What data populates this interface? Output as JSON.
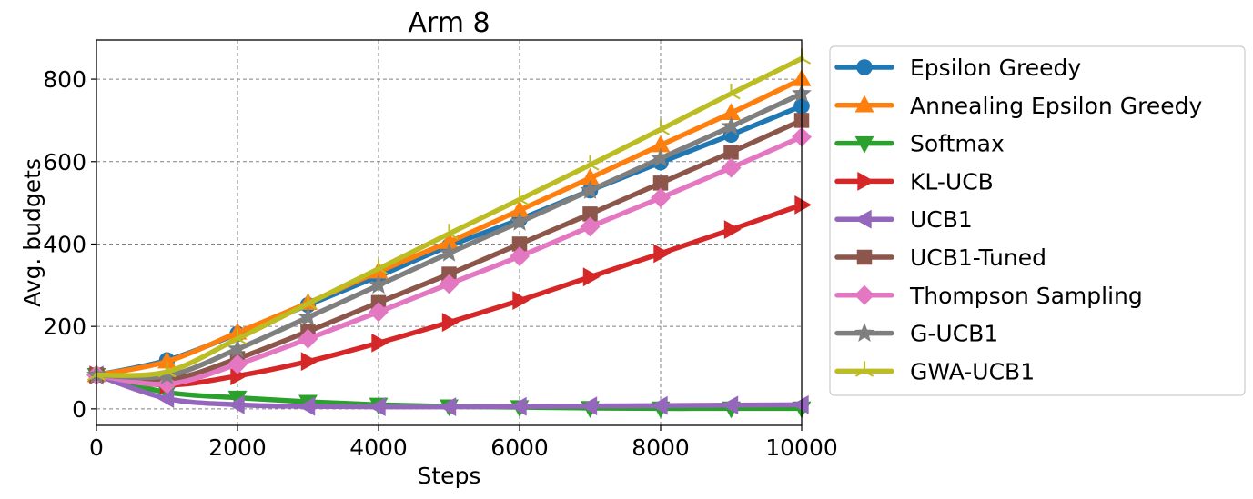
{
  "chart_data": {
    "type": "line",
    "title": "Arm 8",
    "xlabel": "Steps",
    "ylabel": "Avg. budgets",
    "xlim": [
      0,
      10000
    ],
    "ylim": [
      -40,
      895
    ],
    "xticks": [
      0,
      2000,
      4000,
      6000,
      8000,
      10000
    ],
    "xtick_labels": [
      "0",
      "2000",
      "4000",
      "6000",
      "8000",
      "10000"
    ],
    "yticks": [
      0,
      200,
      400,
      600,
      800
    ],
    "ytick_labels": [
      "0",
      "200",
      "400",
      "600",
      "800"
    ],
    "grid": true,
    "legend_position": "outside-right",
    "x": [
      0,
      1000,
      2000,
      3000,
      4000,
      5000,
      6000,
      7000,
      8000,
      9000,
      10000
    ],
    "series": [
      {
        "name": "Epsilon Greedy",
        "color": "#1f77b4",
        "marker": "circle",
        "values": [
          82,
          118,
          182,
          252,
          322,
          395,
          460,
          530,
          598,
          665,
          735
        ]
      },
      {
        "name": "Annealing Epsilon Greedy",
        "color": "#ff7f0e",
        "marker": "triangle-up",
        "values": [
          82,
          115,
          185,
          257,
          333,
          405,
          482,
          560,
          640,
          718,
          800
        ]
      },
      {
        "name": "Softmax",
        "color": "#2ca02c",
        "marker": "triangle-down",
        "values": [
          82,
          40,
          27,
          17,
          10,
          6,
          4,
          2,
          1,
          1,
          1
        ]
      },
      {
        "name": "KL-UCB",
        "color": "#d62728",
        "marker": "triangle-right",
        "values": [
          82,
          58,
          80,
          115,
          160,
          210,
          263,
          320,
          377,
          435,
          495
        ]
      },
      {
        "name": "UCB1",
        "color": "#9467bd",
        "marker": "triangle-left",
        "values": [
          82,
          25,
          10,
          6,
          5,
          5,
          6,
          7,
          8,
          9,
          10
        ]
      },
      {
        "name": "UCB1-Tuned",
        "color": "#8c564b",
        "marker": "square",
        "values": [
          82,
          70,
          122,
          188,
          258,
          327,
          400,
          473,
          548,
          623,
          700
        ]
      },
      {
        "name": "Thompson Sampling",
        "color": "#e377c2",
        "marker": "diamond",
        "values": [
          82,
          60,
          108,
          170,
          235,
          303,
          370,
          442,
          512,
          585,
          660
        ]
      },
      {
        "name": "G-UCB1",
        "color": "#7f7f7f",
        "marker": "star",
        "values": [
          82,
          80,
          145,
          222,
          300,
          378,
          453,
          530,
          608,
          685,
          765
        ]
      },
      {
        "name": "GWA-UCB1",
        "color": "#bcbd22",
        "marker": "tri-up",
        "values": [
          82,
          90,
          170,
          255,
          340,
          425,
          508,
          592,
          678,
          765,
          850
        ]
      }
    ]
  }
}
